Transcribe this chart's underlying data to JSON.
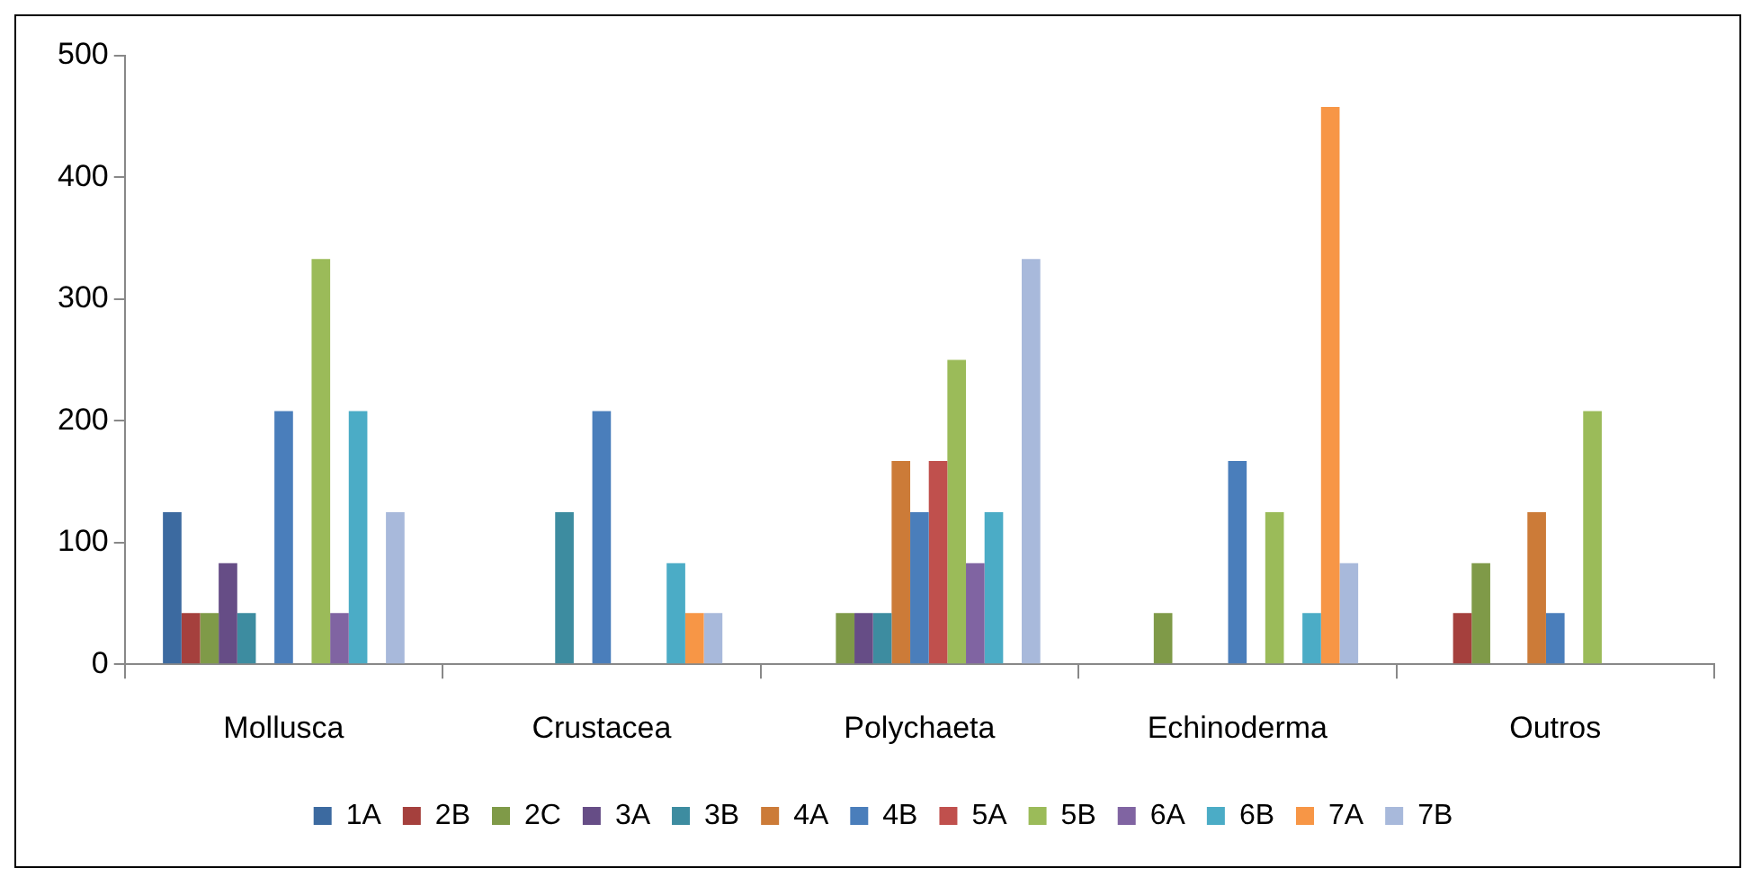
{
  "chart_data": {
    "type": "bar",
    "categories": [
      "Mollusca",
      "Crustacea",
      "Polychaeta",
      "Echinoderma",
      "Outros"
    ],
    "series": [
      {
        "name": "1A",
        "color": "#3c6aa0",
        "values": [
          125,
          0,
          0,
          0,
          0
        ]
      },
      {
        "name": "2B",
        "color": "#a5403d",
        "values": [
          42,
          0,
          0,
          0,
          42
        ]
      },
      {
        "name": "2C",
        "color": "#7f9a48",
        "values": [
          42,
          0,
          42,
          42,
          83
        ]
      },
      {
        "name": "3A",
        "color": "#664d86",
        "values": [
          83,
          0,
          42,
          0,
          0
        ]
      },
      {
        "name": "3B",
        "color": "#3d8ca0",
        "values": [
          42,
          125,
          42,
          0,
          0
        ]
      },
      {
        "name": "4A",
        "color": "#cc7b38",
        "values": [
          0,
          0,
          167,
          0,
          125
        ]
      },
      {
        "name": "4B",
        "color": "#4a7ebb",
        "values": [
          208,
          208,
          125,
          167,
          42
        ]
      },
      {
        "name": "5A",
        "color": "#c0504d",
        "values": [
          0,
          0,
          167,
          0,
          0
        ]
      },
      {
        "name": "5B",
        "color": "#9bbb59",
        "values": [
          333,
          0,
          250,
          125,
          208
        ]
      },
      {
        "name": "6A",
        "color": "#8064a2",
        "values": [
          42,
          0,
          83,
          0,
          0
        ]
      },
      {
        "name": "6B",
        "color": "#4bacc6",
        "values": [
          208,
          83,
          125,
          42,
          0
        ]
      },
      {
        "name": "7A",
        "color": "#f79646",
        "values": [
          0,
          42,
          0,
          458,
          0
        ]
      },
      {
        "name": "7B",
        "color": "#a8b9db",
        "values": [
          125,
          42,
          333,
          83,
          0
        ]
      }
    ],
    "ylim": [
      0,
      500
    ],
    "yticks": [
      0,
      100,
      200,
      300,
      400,
      500
    ],
    "grid": false,
    "legend": "bottom"
  }
}
